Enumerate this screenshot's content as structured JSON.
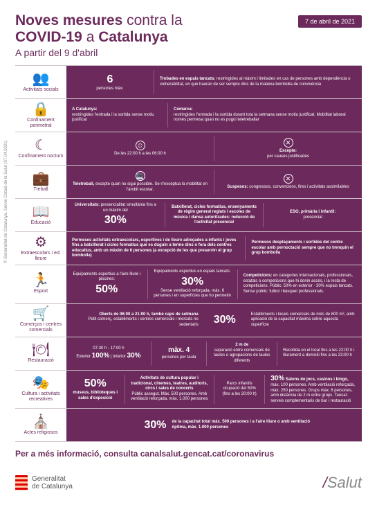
{
  "colors": {
    "primary": "#6b2a5b",
    "bg": "#ffffff",
    "divider": "#d0c3cc"
  },
  "header": {
    "line1_a": "Noves mesures",
    "line1_b": "contra la",
    "line2_a": "COVID-19",
    "line2_b": "a",
    "line2_c": "Catalunya",
    "subtitle": "A partir del 9 d'abril",
    "date": "7 de abril de 2021"
  },
  "rows": {
    "socials": {
      "icon": "👥",
      "label": "Activitats socials",
      "left_big": "6",
      "left_text": "persones màx.",
      "right_title": "Trobades en espais tancats:",
      "right_text": "restringides al màxim i limitades en cas de persones amb dependència o vulnerabilitat, en què hauran de ser sempre dins de la mateixa bombolla de convivència"
    },
    "perimetral": {
      "icon": "🔒",
      "label": "Confinament perimetral",
      "left_title": "A Catalunya:",
      "left_text": "restringides l'entrada i la sortida sense motiu justificat",
      "right_title": "Comarca:",
      "right_text": "restringides l'entrada i la sortida durant tota la setmana sense motiu justificat. Mobilitat laboral només permesa quan no es pugui teletreballar"
    },
    "nocturn": {
      "icon": "☾",
      "label": "Confinament nocturn",
      "left_text": "De les 22:00 h a les 06:00 h",
      "right_title": "Excepte:",
      "right_text": "per causes justificades"
    },
    "treball": {
      "icon": "💼",
      "label": "Treball",
      "left_title": "Teletreball,",
      "left_text": "excepte quan no sigui possible. Se n'exceptua la mobilitat en l'àmbit escolar.",
      "right_title": "Suspesos:",
      "right_text": "congressos, convencions, fires i activitats assimilables"
    },
    "educacio": {
      "icon": "📖",
      "label": "Educació",
      "c1_title": "Universitats:",
      "c1_text": "presencialitat simultània fins a un màxim del",
      "c1_big": "30%",
      "c2": "Batxillerat, cicles formatius, ensenyaments de règim general reglats i escoles de música i dansa autoritzades: reducció de l'activitat presencial",
      "c3_title": "ESO, primària i infantil:",
      "c3_text": "presencial"
    },
    "extra": {
      "icon": "⚙",
      "label": "Extraescolars i ed. lleure",
      "left": "Permeses activitats extraescolars, esportives i de lleure adreçades a infants i joves fins a batxillerat i cicles formatius que es duguin a terme dins o fora dels centres educatius, amb un màxim de 6 persones (a excepció de les que preservin el grup bombolla)",
      "right": "Permesos desplaçaments i sortides del centre escolar amb pernoctació sempre que no trenquin el grup bombolla"
    },
    "esport": {
      "icon": "🏃",
      "label": "Esport",
      "c1_title": "Equipaments esportius a l'aire lliure i piscines:",
      "c1_big": "50%",
      "c2_title": "Equipaments esportius en espais tancats:",
      "c2_big": "30%",
      "c2_text": "Sense ventilació reforçada, màx. 6 persones i en superfícies que ho permetin",
      "c3_title": "Competicions:",
      "c3_text": "en categories internacionals, professionals, estatals o competicions que hi donin accés, i la resta de competicions. Públic: 50% en exterior · 30% espais tancats. Sense públic: futbol i bàsquet professionals."
    },
    "comercos": {
      "icon": "🛒",
      "label": "Comerços i centres comercials",
      "left_title": "Oberts de 06:00 a 21:00 h, també caps de setmana",
      "left_text": "Petit comerç, establiments i centres comercials i mercats no sedentaris",
      "big": "30%",
      "right": "Establiments i locals comercials de més de 800 m², amb aplicació de la capacitat màxima sobre aquesta superfície"
    },
    "restauracio": {
      "icon": "🍽",
      "label": "Restauració",
      "hours": "07:30 h - 17:00 h",
      "c1_a": "Exterior",
      "c1_a_big": "100%",
      "c1_b": "Interior",
      "c1_b_big": "30%",
      "c2_title": "màx. 4",
      "c2_text": "persones per taula",
      "c3_title": "2 m de",
      "c3_text": "separació entre comensals de taules o agrupacions de taules diferents",
      "c4": "Recollida en el local fins a les 22:00 h i lliurament a domicili fins a les 23:00 h"
    },
    "cultura": {
      "icon": "🎭",
      "label": "Cultura i activitats recreatives",
      "c1_big": "50%",
      "c1_text": "museus, biblioteques i sales d'exposició",
      "c2_title": "Activitats de cultura popular i tradicional, cinemes, teatres, auditoris, circs i sales de concerts",
      "c2_text": "Públic assegut. Màx. 500 persones. Amb ventilació reforçada, màx. 1.000 persones",
      "c3_text": "Parcs infantils ocupació del 50% (fins a les 20:00 h)",
      "c4_big": "30%",
      "c4_title": "Salons de jocs, casinos i bingo,",
      "c4_text": "màx. 100 persones. Amb ventilació reforçada, màx. 250 persones. Grups màx. 6 persones, amb distància de 2 m entre grups. Tancat: serveis complementaris de bar i restauració"
    },
    "religiosos": {
      "icon": "⛪",
      "label": "Actes religiosos",
      "big": "30%",
      "text": "de la capacitat total màx. 500 persones i a l'aire lliure o amb ventilació òptima, màx. 1.000 persones"
    }
  },
  "footer": {
    "info": "Per a més informació, consulta canalsalut.gencat.cat/coronavirus",
    "gencat1": "Generalitat",
    "gencat2": "de Catalunya",
    "salut": "Salut",
    "credit": "© Generalitat de Catalunya. Servei Català de la Salut (07.04.2021)"
  }
}
